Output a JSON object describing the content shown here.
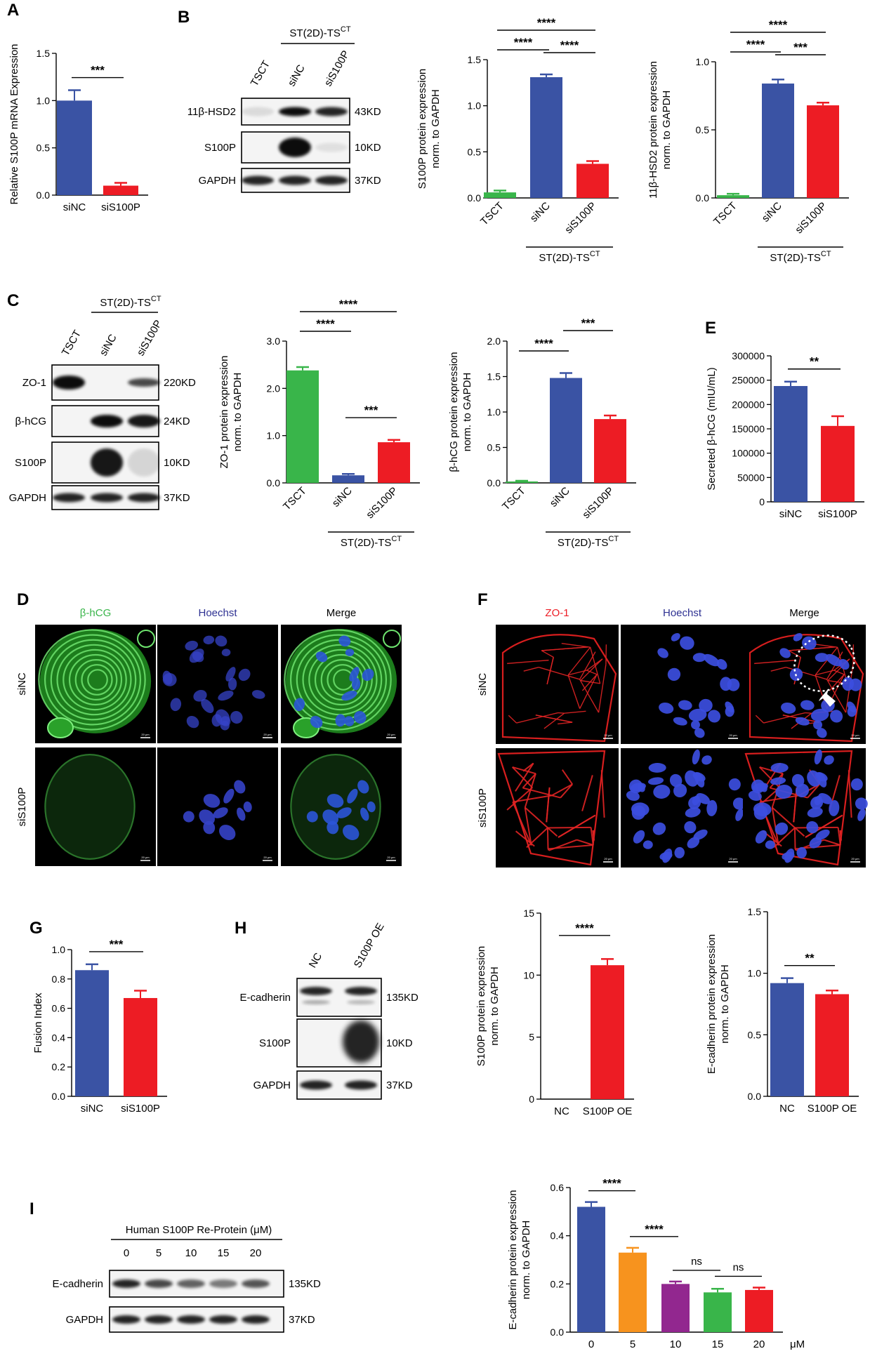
{
  "panels": {
    "A": "A",
    "B": "B",
    "C": "C",
    "D": "D",
    "E": "E",
    "F": "F",
    "G": "G",
    "H": "H",
    "I": "I"
  },
  "colors": {
    "blue": "#3a53a4",
    "red": "#ed1c24",
    "green": "#39b54a",
    "orange": "#f7931e",
    "purple": "#92278f"
  },
  "blots": {
    "B": {
      "group": "ST(2D)-TS",
      "group_sup": "CT",
      "lanes": [
        "TSCT",
        "siNC",
        "siS100P"
      ],
      "rows": [
        {
          "name": "11β-HSD2",
          "size": "43KD"
        },
        {
          "name": "S100P",
          "size": "10KD"
        },
        {
          "name": "GAPDH",
          "size": "37KD"
        }
      ]
    },
    "C": {
      "group": "ST(2D)-TS",
      "group_sup": "CT",
      "lanes": [
        "TSCT",
        "siNC",
        "siS100P"
      ],
      "rows": [
        {
          "name": "ZO-1",
          "size": "220KD"
        },
        {
          "name": "β-hCG",
          "size": "24KD"
        },
        {
          "name": "S100P",
          "size": "10KD"
        },
        {
          "name": "GAPDH",
          "size": "37KD"
        }
      ]
    },
    "H": {
      "lanes": [
        "NC",
        "S100P OE"
      ],
      "rows": [
        {
          "name": "E-cadherin",
          "size": "135KD"
        },
        {
          "name": "S100P",
          "size": "10KD"
        },
        {
          "name": "GAPDH",
          "size": "37KD"
        }
      ]
    },
    "I": {
      "title": "Human S100P Re-Protein (μM)",
      "lanes": [
        "0",
        "5",
        "10",
        "15",
        "20"
      ],
      "rows": [
        {
          "name": "E-cadherin",
          "size": "135KD"
        },
        {
          "name": "GAPDH",
          "size": "37KD"
        }
      ]
    }
  },
  "micro": {
    "D": {
      "cols": [
        "β-hCG",
        "Hoechst",
        "Merge"
      ],
      "rows": [
        "siNC",
        "siS100P"
      ],
      "scale": "20 μm"
    },
    "F": {
      "cols": [
        "ZO-1",
        "Hoechst",
        "Merge"
      ],
      "rows": [
        "siNC",
        "siS100P"
      ],
      "scale": "20 μm"
    }
  },
  "chart_data": [
    {
      "id": "A",
      "type": "bar",
      "ylabel": "Relative S100P mRNA Expression",
      "ylim": [
        0,
        1.5
      ],
      "yticks": [
        "0.0",
        "0.5",
        "1.0",
        "1.5"
      ],
      "categories": [
        "siNC",
        "siS100P"
      ],
      "values": [
        1.0,
        0.1
      ],
      "errors": [
        0.11,
        0.03
      ],
      "colors": [
        "#3a53a4",
        "#ed1c24"
      ],
      "sig": [
        {
          "from": 0,
          "to": 1,
          "label": "***"
        }
      ]
    },
    {
      "id": "B1",
      "type": "bar",
      "ylabel": [
        "S100P protein expression",
        "norm. to GAPDH"
      ],
      "ylim": [
        0,
        1.5
      ],
      "yticks": [
        "0.0",
        "0.5",
        "1.0",
        "1.5"
      ],
      "categories": [
        "TSCT",
        "siNC",
        "siS100P"
      ],
      "values": [
        0.06,
        1.31,
        0.37
      ],
      "errors": [
        0.02,
        0.03,
        0.03
      ],
      "colors": [
        "#39b54a",
        "#3a53a4",
        "#ed1c24"
      ],
      "group": "ST(2D)-TS",
      "group_sup": "CT",
      "sig": [
        {
          "from": 0,
          "to": 1,
          "label": "****"
        },
        {
          "from": 1,
          "to": 2,
          "label": "****"
        },
        {
          "from": 0,
          "to": 2,
          "label": "****"
        }
      ]
    },
    {
      "id": "B2",
      "type": "bar",
      "ylabel": [
        "11β-HSD2 protein expression",
        "norm. to GAPDH"
      ],
      "ylim": [
        0,
        1.0
      ],
      "yticks": [
        "0.0",
        "0.5",
        "1.0"
      ],
      "categories": [
        "TSCT",
        "siNC",
        "siS100P"
      ],
      "values": [
        0.02,
        0.84,
        0.68
      ],
      "errors": [
        0.01,
        0.03,
        0.02
      ],
      "colors": [
        "#39b54a",
        "#3a53a4",
        "#ed1c24"
      ],
      "group": "ST(2D)-TS",
      "group_sup": "CT",
      "sig": [
        {
          "from": 0,
          "to": 1,
          "label": "****"
        },
        {
          "from": 1,
          "to": 2,
          "label": "***"
        },
        {
          "from": 0,
          "to": 2,
          "label": "****"
        }
      ]
    },
    {
      "id": "C1",
      "type": "bar",
      "ylabel": [
        "ZO-1 protein expression",
        "norm. to GAPDH"
      ],
      "ylim": [
        0,
        3.0
      ],
      "yticks": [
        "0.0",
        "1.0",
        "2.0",
        "3.0"
      ],
      "categories": [
        "TSCT",
        "siNC",
        "siS100P"
      ],
      "values": [
        2.38,
        0.16,
        0.86
      ],
      "errors": [
        0.07,
        0.03,
        0.05
      ],
      "colors": [
        "#39b54a",
        "#3a53a4",
        "#ed1c24"
      ],
      "group": "ST(2D)-TS",
      "group_sup": "CT",
      "sig": [
        {
          "from": 0,
          "to": 1,
          "label": "****"
        },
        {
          "from": 1,
          "to": 2,
          "label": "***"
        },
        {
          "from": 0,
          "to": 2,
          "label": "****"
        }
      ]
    },
    {
      "id": "C2",
      "type": "bar",
      "ylabel": [
        "β-hCG protein expression",
        "norm. to GAPDH"
      ],
      "ylim": [
        0,
        2.0
      ],
      "yticks": [
        "0.0",
        "0.5",
        "1.0",
        "1.5",
        "2.0"
      ],
      "categories": [
        "TSCT",
        "siNC",
        "siS100P"
      ],
      "values": [
        0.02,
        1.48,
        0.9
      ],
      "errors": [
        0.01,
        0.07,
        0.05
      ],
      "colors": [
        "#39b54a",
        "#3a53a4",
        "#ed1c24"
      ],
      "group": "ST(2D)-TS",
      "group_sup": "CT",
      "sig": [
        {
          "from": 0,
          "to": 1,
          "label": "****"
        },
        {
          "from": 1,
          "to": 2,
          "label": "***"
        }
      ]
    },
    {
      "id": "E",
      "type": "bar",
      "ylabel": "Secreted β-hCG (mIU/mL)",
      "ylim": [
        0,
        300000
      ],
      "yticks": [
        "0",
        "50000",
        "100000",
        "150000",
        "200000",
        "250000",
        "300000"
      ],
      "categories": [
        "siNC",
        "siS100P"
      ],
      "values": [
        238000,
        156000
      ],
      "errors": [
        9000,
        20000
      ],
      "colors": [
        "#3a53a4",
        "#ed1c24"
      ],
      "sig": [
        {
          "from": 0,
          "to": 1,
          "label": "**"
        }
      ]
    },
    {
      "id": "G",
      "type": "bar",
      "ylabel": "Fusion Index",
      "ylim": [
        0,
        1.0
      ],
      "yticks": [
        "0.0",
        "0.2",
        "0.4",
        "0.6",
        "0.8",
        "1.0"
      ],
      "categories": [
        "siNC",
        "siS100P"
      ],
      "values": [
        0.86,
        0.67
      ],
      "errors": [
        0.04,
        0.05
      ],
      "colors": [
        "#3a53a4",
        "#ed1c24"
      ],
      "sig": [
        {
          "from": 0,
          "to": 1,
          "label": "***"
        }
      ]
    },
    {
      "id": "H1",
      "type": "bar",
      "ylabel": [
        "S100P protein expression",
        "norm. to GAPDH"
      ],
      "ylim": [
        0,
        15
      ],
      "yticks": [
        "0",
        "5",
        "10",
        "15"
      ],
      "categories": [
        "NC",
        "S100P OE"
      ],
      "values": [
        0.0,
        10.8
      ],
      "errors": [
        0,
        0.5
      ],
      "colors": [
        "#3a53a4",
        "#ed1c24"
      ],
      "sig": [
        {
          "from": 0,
          "to": 1,
          "label": "****"
        }
      ]
    },
    {
      "id": "H2",
      "type": "bar",
      "ylabel": [
        "E-cadherin protein expression",
        "norm. to GAPDH"
      ],
      "ylim": [
        0,
        1.5
      ],
      "yticks": [
        "0.0",
        "0.5",
        "1.0",
        "1.5"
      ],
      "categories": [
        "NC",
        "S100P OE"
      ],
      "values": [
        0.92,
        0.83
      ],
      "errors": [
        0.04,
        0.03
      ],
      "colors": [
        "#3a53a4",
        "#ed1c24"
      ],
      "sig": [
        {
          "from": 0,
          "to": 1,
          "label": "**"
        }
      ]
    },
    {
      "id": "I",
      "type": "bar",
      "ylabel": [
        "E-cadherin protein expression",
        "norm. to GAPDH"
      ],
      "ylim": [
        0,
        0.6
      ],
      "yticks": [
        "0.0",
        "0.2",
        "0.4",
        "0.6"
      ],
      "categories": [
        "0",
        "5",
        "10",
        "15",
        "20"
      ],
      "values": [
        0.52,
        0.33,
        0.2,
        0.165,
        0.175
      ],
      "errors": [
        0.02,
        0.02,
        0.01,
        0.015,
        0.01
      ],
      "colors": [
        "#3a53a4",
        "#f7931e",
        "#92278f",
        "#39b54a",
        "#ed1c24"
      ],
      "xunit": "μM",
      "sig": [
        {
          "from": 0,
          "to": 1,
          "label": "****"
        },
        {
          "from": 1,
          "to": 2,
          "label": "****"
        },
        {
          "from": 2,
          "to": 3,
          "label": "ns"
        },
        {
          "from": 3,
          "to": 4,
          "label": "ns"
        }
      ]
    }
  ]
}
